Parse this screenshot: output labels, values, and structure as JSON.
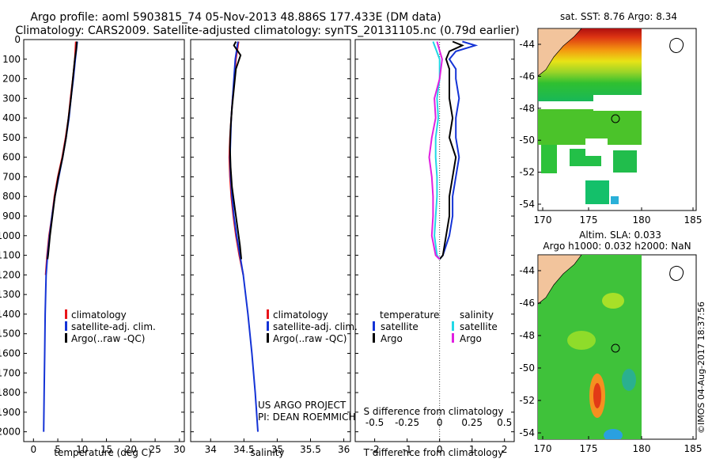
{
  "header": {
    "line1": "Argo profile: aoml 5903815_74 05-Nov-2013 48.886S 177.433E (DM data)",
    "line2": "Climatology: CARS2009. Satellite-adjusted climatology: synTS_20131105.nc (0.79d earlier)"
  },
  "colors": {
    "climatology": "#e8141a",
    "satellite": "#1433d6",
    "argo": "#000000",
    "salinity_sat": "#22d8e6",
    "salinity_argo": "#e020e0",
    "land": "#f2c49c"
  },
  "depth_ticks": [
    "0",
    "100",
    "200",
    "300",
    "400",
    "500",
    "600",
    "700",
    "800",
    "900",
    "1000",
    "1100",
    "1200",
    "1300",
    "1400",
    "1500",
    "1600",
    "1700",
    "1800",
    "1900",
    "2000"
  ],
  "chart_data": [
    {
      "type": "line",
      "id": "temperature",
      "xlabel": "temperature (deg C)",
      "ylabel": "depth",
      "xlim": [
        -2,
        31
      ],
      "ylim": [
        2050,
        0
      ],
      "xticks": [
        "0",
        "5",
        "10",
        "15",
        "20",
        "25",
        "30"
      ],
      "legend": [
        "climatology",
        "satellite-adj. clim.",
        "Argo(..raw -QC)"
      ],
      "series": [
        {
          "name": "climatology",
          "depth": [
            10,
            100,
            200,
            300,
            400,
            500,
            600,
            700,
            800,
            900,
            1000,
            1100,
            1200
          ],
          "values": [
            8.7,
            8.5,
            8.1,
            7.6,
            7.2,
            6.6,
            5.9,
            5.0,
            4.3,
            3.8,
            3.2,
            2.8,
            2.5
          ]
        },
        {
          "name": "satellite-adj. clim.",
          "depth": [
            10,
            100,
            200,
            300,
            400,
            500,
            600,
            700,
            800,
            900,
            1000,
            1100,
            1200,
            1400,
            1600,
            1800,
            2000
          ],
          "values": [
            9.0,
            8.6,
            8.2,
            7.7,
            7.3,
            6.7,
            6.0,
            5.2,
            4.4,
            3.8,
            3.3,
            2.9,
            2.6,
            2.4,
            2.3,
            2.2,
            2.1
          ]
        },
        {
          "name": "Argo(..raw -QC)",
          "depth": [
            10,
            50,
            100,
            200,
            300,
            400,
            500,
            600,
            700,
            800,
            900,
            1000,
            1100,
            1120
          ],
          "values": [
            8.9,
            8.8,
            8.5,
            8.1,
            7.7,
            7.2,
            6.7,
            6.0,
            5.1,
            4.4,
            3.9,
            3.4,
            3.0,
            2.9
          ]
        }
      ]
    },
    {
      "type": "line",
      "id": "salinity",
      "xlabel": "salinity",
      "ylabel": "depth",
      "xlim": [
        33.7,
        36.1
      ],
      "ylim": [
        2050,
        0
      ],
      "xticks": [
        "34",
        "34.5",
        "35",
        "35.5",
        "36"
      ],
      "legend": [
        "climatology",
        "satellite-adj. clim.",
        "Argo(..raw -QC)"
      ],
      "annotation": [
        "US ARGO PROJECT",
        "PI: DEAN ROEMMICH"
      ],
      "series": [
        {
          "name": "climatology",
          "depth": [
            10,
            100,
            200,
            300,
            400,
            500,
            600,
            700,
            800,
            900,
            1000,
            1100,
            1200
          ],
          "values": [
            34.42,
            34.38,
            34.36,
            34.33,
            34.31,
            34.29,
            34.28,
            34.29,
            34.31,
            34.34,
            34.38,
            34.43,
            34.49
          ]
        },
        {
          "name": "satellite-adj. clim.",
          "depth": [
            10,
            100,
            200,
            300,
            400,
            500,
            600,
            700,
            800,
            900,
            1000,
            1100,
            1200,
            1400,
            1600,
            1800,
            2000
          ],
          "values": [
            34.41,
            34.37,
            34.35,
            34.33,
            34.31,
            34.3,
            34.29,
            34.3,
            34.32,
            34.35,
            34.39,
            34.44,
            34.49,
            34.56,
            34.62,
            34.67,
            34.71
          ]
        },
        {
          "name": "Argo(..raw -QC)",
          "depth": [
            10,
            30,
            80,
            150,
            250,
            350,
            450,
            550,
            650,
            750,
            850,
            950,
            1050,
            1120
          ],
          "values": [
            34.38,
            34.35,
            34.45,
            34.38,
            34.35,
            34.32,
            34.3,
            34.29,
            34.3,
            34.32,
            34.36,
            34.4,
            34.44,
            34.46
          ]
        }
      ]
    },
    {
      "type": "line",
      "id": "differences",
      "xlabel": "T difference from climatology",
      "xlabel2": "S difference from climatology",
      "xlim": [
        -2.6,
        2.3
      ],
      "ylim": [
        2050,
        0
      ],
      "xticks": [
        "-2",
        "-1",
        "0",
        "1",
        "2"
      ],
      "sticks": [
        "-0.5",
        "-0.25",
        "0",
        "0.25",
        "0.5"
      ],
      "legend_title_t": "temperature",
      "legend_title_s": "salinity",
      "legend_t": [
        "satellite",
        "Argo"
      ],
      "legend_s": [
        "satellite",
        "Argo"
      ],
      "series": [
        {
          "name": "T satellite",
          "depth": [
            10,
            30,
            60,
            100,
            150,
            200,
            300,
            400,
            500,
            600,
            700,
            800,
            900,
            1000,
            1100,
            1120
          ],
          "values": [
            0.7,
            1.1,
            0.5,
            0.3,
            0.5,
            0.5,
            0.6,
            0.5,
            0.5,
            0.6,
            0.5,
            0.4,
            0.4,
            0.3,
            0.1,
            0.0
          ]
        },
        {
          "name": "T Argo",
          "depth": [
            10,
            30,
            60,
            100,
            150,
            200,
            300,
            400,
            500,
            600,
            700,
            800,
            900,
            1000,
            1100,
            1120
          ],
          "values": [
            0.4,
            0.7,
            0.3,
            0.2,
            0.3,
            0.3,
            0.3,
            0.4,
            0.3,
            0.5,
            0.4,
            0.3,
            0.3,
            0.2,
            0.1,
            0.0
          ]
        },
        {
          "name": "S satellite",
          "depth": [
            10,
            100,
            200,
            300,
            400,
            500,
            600,
            700,
            800,
            900,
            1000,
            1100,
            1120
          ],
          "values": [
            -0.05,
            0.0,
            0.0,
            -0.02,
            -0.01,
            -0.03,
            -0.03,
            -0.02,
            -0.02,
            -0.03,
            -0.04,
            -0.02,
            0.0
          ]
        },
        {
          "name": "S Argo",
          "depth": [
            10,
            100,
            200,
            300,
            400,
            500,
            600,
            700,
            800,
            900,
            1000,
            1100,
            1120
          ],
          "values": [
            -0.02,
            0.02,
            0.0,
            -0.04,
            -0.03,
            -0.06,
            -0.08,
            -0.06,
            -0.05,
            -0.05,
            -0.06,
            -0.03,
            0.0
          ]
        }
      ]
    },
    {
      "type": "heatmap",
      "id": "sst_map",
      "title": "sat. SST: 8.76 Argo: 8.34",
      "xticks": [
        "170",
        "175",
        "180",
        "185"
      ],
      "yticks": [
        "-44",
        "-46",
        "-48",
        "-50",
        "-52",
        "-54"
      ]
    },
    {
      "type": "heatmap",
      "id": "sla_map",
      "title": "Altim. SLA: 0.033",
      "subtitle": "Argo h1000: 0.032 h2000: NaN",
      "xticks": [
        "170",
        "175",
        "180",
        "185"
      ],
      "yticks": [
        "-44",
        "-46",
        "-48",
        "-50",
        "-52",
        "-54"
      ]
    }
  ],
  "footer": {
    "stamp": "©IMOS 04-Aug-2017 18:37:56"
  }
}
